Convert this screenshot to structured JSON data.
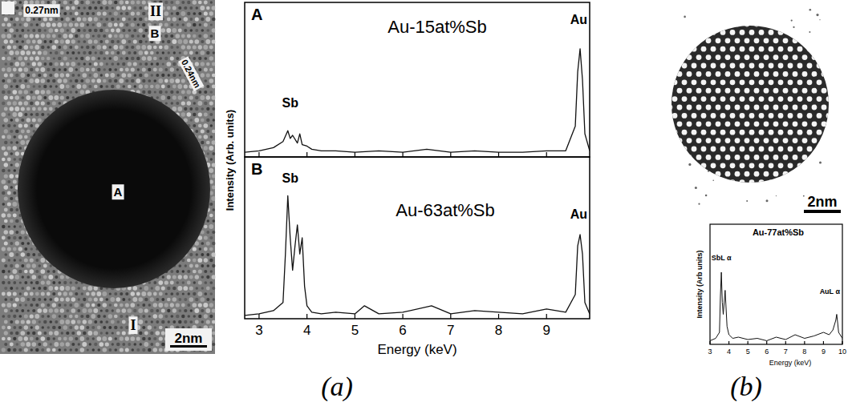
{
  "chart_data": [
    {
      "type": "line",
      "panel": "A",
      "title": "Au-15at%Sb",
      "y_label": "Intensity (Arb. units)",
      "xlim": [
        2.7,
        9.9
      ],
      "xticks": [
        3,
        4,
        5,
        6,
        7,
        8,
        9
      ],
      "ylim": [
        0,
        100
      ],
      "tick_labels": false,
      "color": "#111111",
      "x": [
        2.7,
        3.0,
        3.3,
        3.5,
        3.6,
        3.65,
        3.7,
        3.8,
        3.85,
        3.9,
        4.0,
        4.1,
        4.3,
        4.6,
        5.0,
        5.5,
        6.0,
        6.5,
        7.0,
        7.5,
        8.0,
        8.5,
        9.0,
        9.4,
        9.6,
        9.65,
        9.7,
        9.75,
        9.8,
        9.9
      ],
      "values": [
        3,
        4,
        6,
        10,
        17,
        12,
        14,
        9,
        15,
        8,
        7,
        5,
        4,
        4,
        3,
        4,
        3,
        5,
        3,
        4,
        3,
        3,
        4,
        4,
        20,
        55,
        70,
        50,
        15,
        4
      ],
      "annotations": [
        {
          "text": "Sb",
          "x": 3.65,
          "y": 32
        },
        {
          "text": "Au",
          "x": 9.7,
          "y": 86
        }
      ]
    },
    {
      "type": "line",
      "panel": "B",
      "title": "Au-63at%Sb",
      "x_label": "Energy (keV)",
      "xlim": [
        2.7,
        9.9
      ],
      "xticks": [
        3,
        4,
        5,
        6,
        7,
        8,
        9
      ],
      "ylim": [
        0,
        100
      ],
      "tick_labels": "x",
      "color": "#111111",
      "x": [
        2.7,
        3.0,
        3.3,
        3.5,
        3.55,
        3.6,
        3.65,
        3.7,
        3.75,
        3.8,
        3.85,
        3.9,
        3.95,
        4.0,
        4.1,
        4.3,
        4.6,
        5.0,
        5.2,
        5.5,
        6.0,
        6.6,
        7.0,
        7.5,
        8.0,
        8.5,
        9.0,
        9.4,
        9.6,
        9.65,
        9.7,
        9.75,
        9.8,
        9.9
      ],
      "values": [
        2,
        3,
        5,
        10,
        40,
        76,
        50,
        30,
        45,
        58,
        40,
        50,
        20,
        8,
        4,
        3,
        4,
        3,
        8,
        3,
        4,
        8,
        3,
        5,
        4,
        3,
        6,
        4,
        15,
        45,
        52,
        40,
        10,
        3
      ],
      "annotations": [
        {
          "text": "Sb",
          "x": 3.65,
          "y": 84
        },
        {
          "text": "Au",
          "x": 9.7,
          "y": 62
        }
      ]
    },
    {
      "type": "line",
      "title": "Au-77at%Sb",
      "y_label": "Intensity (Arb units)",
      "x_label": "Energy (keV)",
      "xlim": [
        3,
        10
      ],
      "xticks": [
        3,
        4,
        5,
        6,
        7,
        8,
        9,
        10
      ],
      "ylim": [
        0,
        100
      ],
      "tick_labels": "x",
      "color": "#111111",
      "x": [
        3,
        3.3,
        3.5,
        3.55,
        3.6,
        3.65,
        3.7,
        3.8,
        3.85,
        3.9,
        4.0,
        4.2,
        4.5,
        5,
        5.5,
        6,
        6.5,
        7,
        7.5,
        8,
        8.5,
        9,
        9.3,
        9.5,
        9.65,
        9.7,
        9.75,
        9.8,
        10
      ],
      "values": [
        3,
        5,
        10,
        40,
        60,
        35,
        25,
        45,
        30,
        15,
        8,
        5,
        6,
        4,
        5,
        3,
        6,
        4,
        8,
        5,
        7,
        10,
        8,
        12,
        20,
        25,
        18,
        10,
        5
      ],
      "annotations": [
        {
          "text": "SbL α",
          "x": 3.6,
          "y": 70
        },
        {
          "text": "AuL α",
          "x": 9.9,
          "y": 42
        }
      ]
    }
  ],
  "images": [
    {
      "labels": [
        "0.27nm",
        "II",
        "B",
        "0.24nm",
        "A",
        "I"
      ],
      "scale_bar": "2nm",
      "caption": "(a)"
    },
    {
      "scale_bar": "2nm",
      "caption": "(b)"
    }
  ]
}
